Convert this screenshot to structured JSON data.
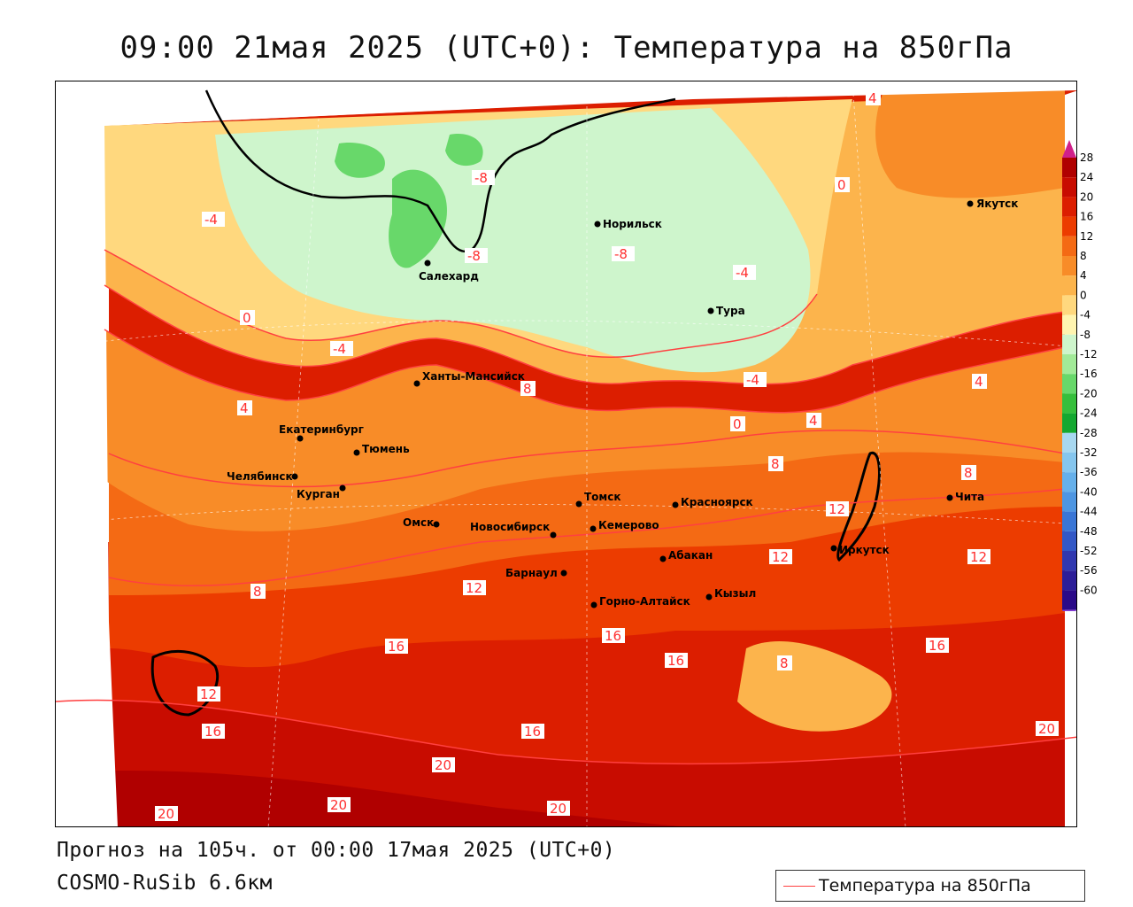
{
  "title": "09:00 21мая 2025 (UTC+0): Температура на 850гПа",
  "footer": {
    "forecast": "Прогноз на 105ч. от 00:00 17мая 2025 (UTC+0)",
    "model": "COSMO-RuSib 6.6км"
  },
  "legend": {
    "label": "Температура на 850гПа",
    "line_color": "#ff4040"
  },
  "colorbar": {
    "ticks": [
      "28",
      "24",
      "20",
      "16",
      "12",
      "8",
      "4",
      "0",
      "-4",
      "-8",
      "-12",
      "-16",
      "-20",
      "-24",
      "-28",
      "-32",
      "-36",
      "-40",
      "-44",
      "-48",
      "-52",
      "-56",
      "-60"
    ],
    "colors": [
      "#b00000",
      "#c80c00",
      "#dc1e00",
      "#ec3c00",
      "#f46a14",
      "#f88c28",
      "#fcb44c",
      "#ffd87e",
      "#fff4b0",
      "#cef5cc",
      "#a2ea98",
      "#68d86a",
      "#36bf3c",
      "#14a830",
      "#a8d8f0",
      "#86c6ee",
      "#66b0ea",
      "#4e96e2",
      "#3a76d6",
      "#3358c6",
      "#3038b0",
      "#2c1e98",
      "#2a0a88"
    ]
  },
  "cities": [
    {
      "name": "Салехард",
      "label": "Салехард"
    },
    {
      "name": "Норильск",
      "label": "Норильск"
    },
    {
      "name": "Якутск",
      "label": "Якутск"
    },
    {
      "name": "Тура",
      "label": "Тура"
    },
    {
      "name": "Ханты-Мансийск",
      "label": "Ханты-Мансийск"
    },
    {
      "name": "Екатеринбург",
      "label": "Екатеринбург"
    },
    {
      "name": "Тюмень",
      "label": "Тюмень"
    },
    {
      "name": "Челябинск",
      "label": "Челябинск"
    },
    {
      "name": "Курган",
      "label": "Курган"
    },
    {
      "name": "Омск",
      "label": "Омск"
    },
    {
      "name": "Новосибирск",
      "label": "Новосибирск"
    },
    {
      "name": "Томск",
      "label": "Томск"
    },
    {
      "name": "Кемерово",
      "label": "Кемерово"
    },
    {
      "name": "Красноярск",
      "label": "Красноярск"
    },
    {
      "name": "Барнаул",
      "label": "Барнаул"
    },
    {
      "name": "Абакан",
      "label": "Абакан"
    },
    {
      "name": "Иркутск",
      "label": "Иркутск"
    },
    {
      "name": "Чита",
      "label": "Чита"
    },
    {
      "name": "Горно-Алтайск",
      "label": "Горно-Алтайск"
    },
    {
      "name": "Кызыл",
      "label": "Кызыл"
    }
  ],
  "contour_labels": [
    "-8",
    "-4",
    "0",
    "4",
    "8",
    "12",
    "16",
    "20"
  ]
}
